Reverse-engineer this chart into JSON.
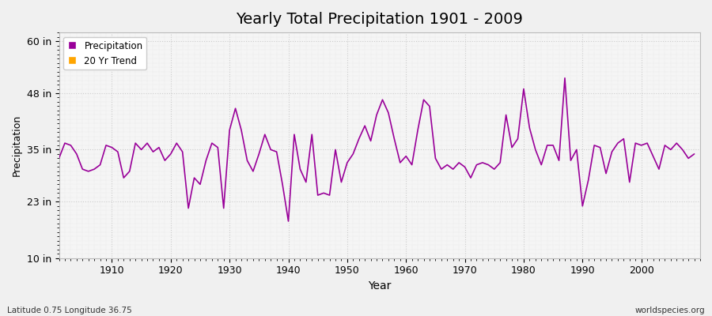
{
  "title": "Yearly Total Precipitation 1901 - 2009",
  "xlabel": "Year",
  "ylabel": "Precipitation",
  "subtitle": "Latitude 0.75 Longitude 36.75",
  "watermark": "worldspecies.org",
  "line_color": "#990099",
  "trend_color": "#FFA500",
  "bg_color": "#F0F0F0",
  "plot_bg_color": "#F5F5F5",
  "grid_color": "#CCCCCC",
  "ylim": [
    10,
    62
  ],
  "yticks": [
    10,
    23,
    35,
    48,
    60
  ],
  "ytick_labels": [
    "10 in",
    "23 in",
    "35 in",
    "48 in",
    "60 in"
  ],
  "xticks": [
    1910,
    1920,
    1930,
    1940,
    1950,
    1960,
    1970,
    1980,
    1990,
    2000
  ],
  "xlim": [
    1901,
    2010
  ],
  "years": [
    1901,
    1902,
    1903,
    1904,
    1905,
    1906,
    1907,
    1908,
    1909,
    1910,
    1911,
    1912,
    1913,
    1914,
    1915,
    1916,
    1917,
    1918,
    1919,
    1920,
    1921,
    1922,
    1923,
    1924,
    1925,
    1926,
    1927,
    1928,
    1929,
    1930,
    1931,
    1932,
    1933,
    1934,
    1935,
    1936,
    1937,
    1938,
    1939,
    1940,
    1941,
    1942,
    1943,
    1944,
    1945,
    1946,
    1947,
    1948,
    1949,
    1950,
    1951,
    1952,
    1953,
    1954,
    1955,
    1956,
    1957,
    1958,
    1959,
    1960,
    1961,
    1962,
    1963,
    1964,
    1965,
    1966,
    1967,
    1968,
    1969,
    1970,
    1971,
    1972,
    1973,
    1974,
    1975,
    1976,
    1977,
    1978,
    1979,
    1980,
    1981,
    1982,
    1983,
    1984,
    1985,
    1986,
    1987,
    1988,
    1989,
    1990,
    1991,
    1992,
    1993,
    1994,
    1995,
    1996,
    1997,
    1998,
    1999,
    2000,
    2001,
    2002,
    2003,
    2004,
    2005,
    2006,
    2007,
    2008,
    2009
  ],
  "precip": [
    33.0,
    36.5,
    36.0,
    34.0,
    30.5,
    30.0,
    30.5,
    31.5,
    36.0,
    35.5,
    34.5,
    28.5,
    30.0,
    36.5,
    35.0,
    36.5,
    34.5,
    35.5,
    32.5,
    34.0,
    36.5,
    34.5,
    21.5,
    28.5,
    27.0,
    32.5,
    36.5,
    35.5,
    21.5,
    39.5,
    44.5,
    39.5,
    32.5,
    30.0,
    34.0,
    38.5,
    35.0,
    34.5,
    27.0,
    18.5,
    38.5,
    30.5,
    27.5,
    38.5,
    24.5,
    25.0,
    24.5,
    35.0,
    27.5,
    32.0,
    34.0,
    37.5,
    40.5,
    37.0,
    43.0,
    46.5,
    43.5,
    37.5,
    32.0,
    33.5,
    31.5,
    39.5,
    46.5,
    45.0,
    33.0,
    30.5,
    31.5,
    30.5,
    32.0,
    31.0,
    28.5,
    31.5,
    32.0,
    31.5,
    30.5,
    32.0,
    43.0,
    35.5,
    37.5,
    49.0,
    40.0,
    35.0,
    31.5,
    36.0,
    36.0,
    32.5,
    51.5,
    32.5,
    35.0,
    22.0,
    28.0,
    36.0,
    35.5,
    29.5,
    34.5,
    36.5,
    37.5,
    27.5,
    36.5,
    36.0,
    36.5,
    33.5,
    30.5,
    36.0,
    35.0,
    36.5,
    35.0,
    33.0,
    34.0
  ]
}
